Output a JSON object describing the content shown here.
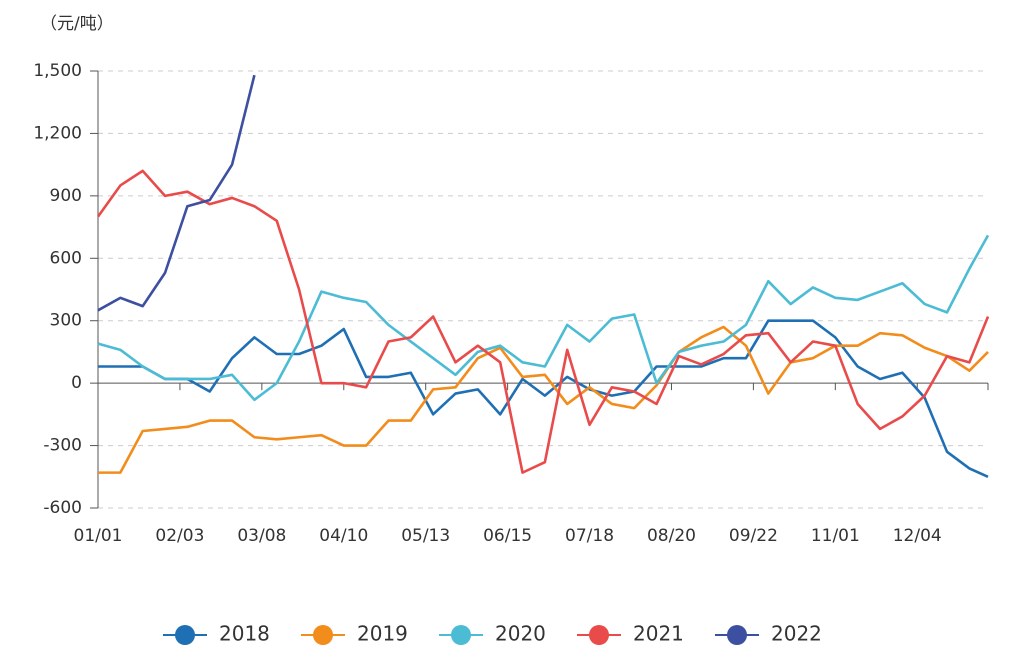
{
  "chart_data": {
    "type": "line",
    "y_label": "（元/吨）",
    "x": [
      0,
      6,
      12,
      18,
      24,
      30,
      36,
      42,
      48,
      54,
      60,
      66,
      72,
      78,
      84,
      90,
      96,
      102,
      108,
      114,
      120,
      126,
      132,
      138,
      144,
      150,
      156,
      162,
      168,
      174,
      180,
      186,
      192,
      198,
      204,
      210,
      216,
      222,
      228,
      234,
      239
    ],
    "xlim": [
      0,
      239
    ],
    "xticks": [
      {
        "value": 0,
        "label": "01/01"
      },
      {
        "value": 22,
        "label": "02/03"
      },
      {
        "value": 44,
        "label": "03/08"
      },
      {
        "value": 66,
        "label": "04/10"
      },
      {
        "value": 88,
        "label": "05/13"
      },
      {
        "value": 110,
        "label": "06/15"
      },
      {
        "value": 132,
        "label": "07/18"
      },
      {
        "value": 154,
        "label": "08/20"
      },
      {
        "value": 176,
        "label": "09/22"
      },
      {
        "value": 198,
        "label": "11/01"
      },
      {
        "value": 220,
        "label": "12/04"
      }
    ],
    "ylim": [
      -600,
      1500
    ],
    "yticks": [
      -600,
      -300,
      0,
      300,
      600,
      900,
      {
        "value": 1200,
        "label": "1,200"
      },
      {
        "value": 1500,
        "label": "1,500"
      }
    ],
    "grid": true,
    "legend": "bottom",
    "series": [
      {
        "name": "2018",
        "color": "#1f6fb5",
        "values": [
          80,
          80,
          80,
          20,
          20,
          -40,
          120,
          220,
          140,
          140,
          180,
          260,
          30,
          30,
          50,
          -150,
          -50,
          -30,
          -150,
          20,
          -60,
          30,
          -30,
          -60,
          -40,
          80,
          80,
          80,
          120,
          120,
          300,
          300,
          300,
          220,
          80,
          20,
          50,
          -70,
          -330,
          -410,
          -450
        ]
      },
      {
        "name": "2019",
        "color": "#f28c1b",
        "values": [
          -430,
          -430,
          -230,
          -220,
          -210,
          -180,
          -180,
          -260,
          -270,
          -260,
          -250,
          -300,
          -300,
          -180,
          -180,
          -30,
          -20,
          120,
          170,
          30,
          40,
          -100,
          -20,
          -100,
          -120,
          -10,
          150,
          220,
          270,
          180,
          -50,
          100,
          120,
          180,
          180,
          240,
          230,
          170,
          130,
          60,
          150
        ]
      },
      {
        "name": "2020",
        "color": "#4bbcd4",
        "values": [
          190,
          160,
          80,
          20,
          20,
          20,
          40,
          -80,
          0,
          200,
          440,
          410,
          390,
          280,
          200,
          120,
          40,
          150,
          180,
          100,
          80,
          280,
          200,
          310,
          330,
          0,
          150,
          180,
          200,
          280,
          490,
          380,
          460,
          410,
          400,
          440,
          480,
          380,
          340,
          550,
          710
        ]
      },
      {
        "name": "2021",
        "color": "#e94b4b",
        "values": [
          800,
          950,
          1020,
          900,
          920,
          860,
          890,
          850,
          780,
          450,
          0,
          0,
          -20,
          200,
          220,
          320,
          100,
          180,
          100,
          -430,
          -380,
          160,
          -200,
          -20,
          -40,
          -100,
          130,
          90,
          140,
          230,
          240,
          100,
          200,
          180,
          -100,
          -220,
          -160,
          -60,
          130,
          100,
          320
        ]
      },
      {
        "name": "2022",
        "color": "#3d4fa0",
        "values": [
          350,
          410,
          370,
          530,
          850,
          880,
          1050,
          1480,
          null,
          null,
          null,
          null,
          null,
          null,
          null,
          null,
          null,
          null,
          null,
          null,
          null,
          null,
          null,
          null,
          null,
          null,
          null,
          null,
          null,
          null,
          null,
          null,
          null,
          null,
          null,
          null,
          null,
          null,
          null,
          null,
          null
        ]
      }
    ]
  }
}
